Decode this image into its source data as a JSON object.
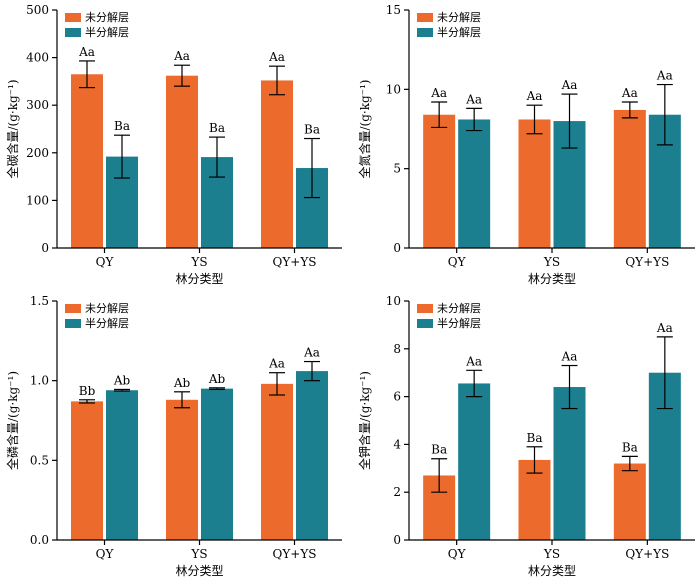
{
  "colors": {
    "unhydrolyzed": "#ec6a2c",
    "semi": "#1b7f8f",
    "axis": "#000000"
  },
  "legend": [
    "未分解层",
    "半分解层"
  ],
  "chart_data": [
    {
      "type": "bar",
      "title": "",
      "xlabel": "林分类型",
      "ylabel": "全碳含量/(g·kg⁻¹)",
      "ylim": [
        0,
        500
      ],
      "yticks": [
        "0",
        "100",
        "200",
        "300",
        "400",
        "500"
      ],
      "categories": [
        "QY",
        "YS",
        "QY+YS"
      ],
      "series": [
        {
          "name": "未分解层",
          "values": [
            365,
            362,
            352
          ],
          "err": [
            28,
            22,
            30
          ],
          "labels": [
            "Aa",
            "Aa",
            "Aa"
          ]
        },
        {
          "name": "半分解层",
          "values": [
            192,
            191,
            168
          ],
          "err": [
            45,
            42,
            62
          ],
          "labels": [
            "Ba",
            "Ba",
            "Ba"
          ]
        }
      ]
    },
    {
      "type": "bar",
      "title": "",
      "xlabel": "林分类型",
      "ylabel": "全氮含量/(g·kg⁻¹)",
      "ylim": [
        0,
        15
      ],
      "yticks": [
        "0",
        "5",
        "10",
        "15"
      ],
      "categories": [
        "QY",
        "YS",
        "QY+YS"
      ],
      "series": [
        {
          "name": "未分解层",
          "values": [
            8.4,
            8.1,
            8.7
          ],
          "err": [
            0.8,
            0.9,
            0.5
          ],
          "labels": [
            "Aa",
            "Aa",
            "Aa"
          ]
        },
        {
          "name": "半分解层",
          "values": [
            8.1,
            8.0,
            8.4
          ],
          "err": [
            0.7,
            1.7,
            1.9
          ],
          "labels": [
            "Aa",
            "Aa",
            "Aa"
          ]
        }
      ]
    },
    {
      "type": "bar",
      "title": "",
      "xlabel": "林分类型",
      "ylabel": "全磷含量/(g·kg⁻¹)",
      "ylim": [
        0,
        1.5
      ],
      "yticks": [
        "0.0",
        "0.5",
        "1.0",
        "1.5"
      ],
      "categories": [
        "QY",
        "YS",
        "QY+YS"
      ],
      "series": [
        {
          "name": "未分解层",
          "values": [
            0.87,
            0.88,
            0.98
          ],
          "err": [
            0.01,
            0.05,
            0.07
          ],
          "labels": [
            "Bb",
            "Ab",
            "Aa"
          ]
        },
        {
          "name": "半分解层",
          "values": [
            0.94,
            0.95,
            1.06
          ],
          "err": [
            0.005,
            0.005,
            0.06
          ],
          "labels": [
            "Ab",
            "Ab",
            "Aa"
          ]
        }
      ]
    },
    {
      "type": "bar",
      "title": "",
      "xlabel": "林分类型",
      "ylabel": "全钾含量/(g·kg⁻¹)",
      "ylim": [
        0,
        10
      ],
      "yticks": [
        "0",
        "2",
        "4",
        "6",
        "8",
        "10"
      ],
      "categories": [
        "QY",
        "YS",
        "QY+YS"
      ],
      "series": [
        {
          "name": "未分解层",
          "values": [
            2.7,
            3.35,
            3.2
          ],
          "err": [
            0.7,
            0.55,
            0.3
          ],
          "labels": [
            "Ba",
            "Ba",
            "Ba"
          ]
        },
        {
          "name": "半分解层",
          "values": [
            6.55,
            6.4,
            7.0
          ],
          "err": [
            0.55,
            0.9,
            1.5
          ],
          "labels": [
            "Aa",
            "Aa",
            "Aa"
          ]
        }
      ]
    }
  ]
}
